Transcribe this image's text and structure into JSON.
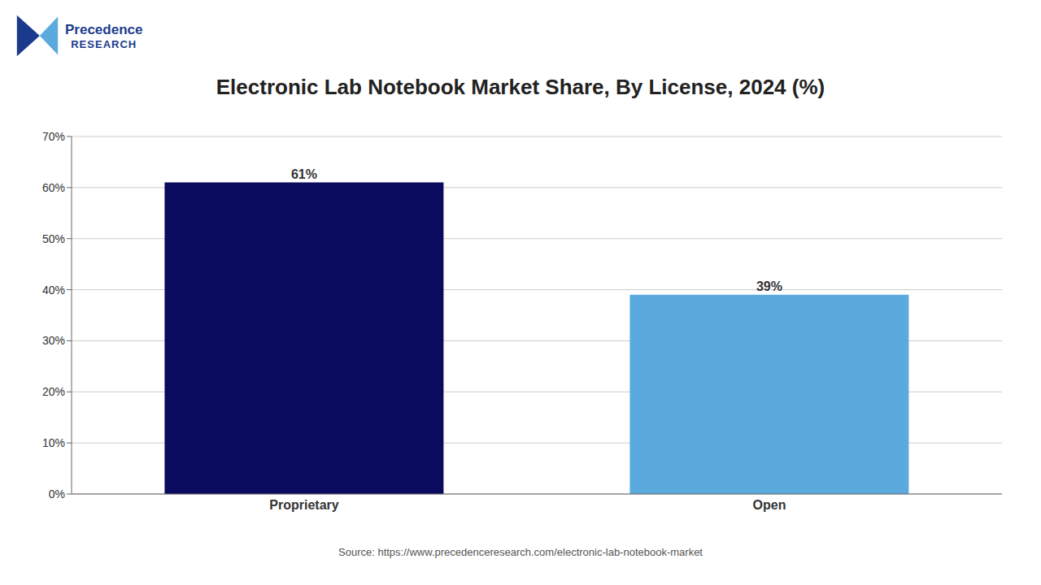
{
  "chart_data": {
    "type": "bar",
    "title": "Electronic Lab Notebook Market Share, By License, 2024 (%)",
    "categories": [
      "Proprietary",
      "Open"
    ],
    "values": [
      61,
      39
    ],
    "value_labels": [
      "61%",
      "39%"
    ],
    "data_labels": true,
    "colors": [
      "#0a0a5e",
      "#5baade"
    ],
    "ylim": [
      0,
      70
    ],
    "yticks": [
      {
        "value": 0,
        "label": "0%"
      },
      {
        "value": 10,
        "label": "10%"
      },
      {
        "value": 20,
        "label": "20%"
      },
      {
        "value": 30,
        "label": "30%"
      },
      {
        "value": 40,
        "label": "40%"
      },
      {
        "value": 50,
        "label": "50%"
      },
      {
        "value": 60,
        "label": "60%"
      },
      {
        "value": 70,
        "label": "70%"
      }
    ],
    "grid": true,
    "annotations": [
      "Precedence",
      "RESEARCH",
      "Source: https://www.precedenceresearch.com/electronic-lab-notebook-market"
    ]
  }
}
